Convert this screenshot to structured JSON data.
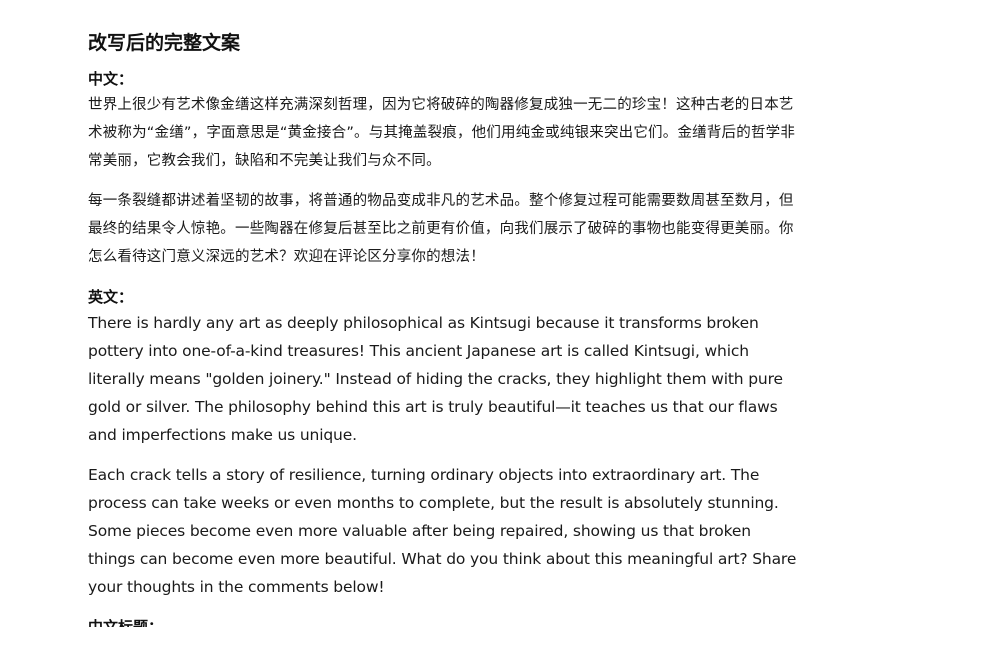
{
  "document": {
    "title": "改写后的完整文案",
    "chinese": {
      "label": "中文：",
      "paragraphs": [
        "世界上很少有艺术像金缮这样充满深刻哲理，因为它将破碎的陶器修复成独一无二的珍宝！这种古老的日本艺术被称为“金缮”，字面意思是“黄金接合”。与其掩盖裂痕，他们用纯金或纯银来突出它们。金缮背后的哲学非常美丽，它教会我们，缺陷和不完美让我们与众不同。",
        "每一条裂缝都讲述着坚韧的故事，将普通的物品变成非凡的艺术品。整个修复过程可能需要数周甚至数月，但最终的结果令人惊艳。一些陶器在修复后甚至比之前更有价值，向我们展示了破碎的事物也能变得更美丽。你怎么看待这门意义深远的艺术？欢迎在评论区分享你的想法！"
      ]
    },
    "english": {
      "label": "英文：",
      "paragraphs": [
        "There is hardly any art as deeply philosophical as Kintsugi because it transforms broken pottery into one-of-a-kind treasures! This ancient Japanese art is called Kintsugi, which literally means \"golden joinery.\" Instead of hiding the cracks, they highlight them with pure gold or silver. The philosophy behind this art is truly beautiful—it teaches us that our flaws and imperfections make us unique.",
        "Each crack tells a story of resilience, turning ordinary objects into extraordinary art. The process can take weeks or even months to complete, but the result is absolutely stunning. Some pieces become even more valuable after being repaired, showing us that broken things can become even more beautiful. What do you think about this meaningful art? Share your thoughts in the comments below!"
      ]
    },
    "next_section_partial": "中文标题："
  }
}
